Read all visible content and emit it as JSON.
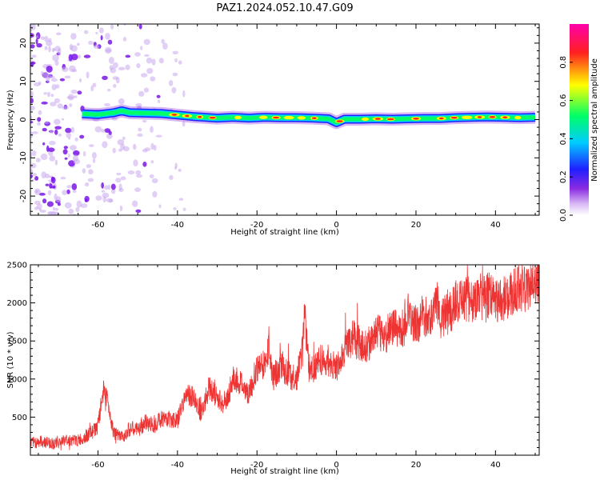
{
  "title": "PAZ1.2024.052.10.47.G09",
  "colors": {
    "snr_line": "#ee3333",
    "noise_purple": "#c9a8ee",
    "noise_violet": "#7a18e8",
    "colormap": [
      "#ffffff",
      "#d8b8f4",
      "#8a2be2",
      "#2020ff",
      "#00ccff",
      "#00ff66",
      "#ffff00",
      "#ff2020",
      "#ff00aa"
    ]
  },
  "chart_data": [
    {
      "type": "heatmap",
      "name": "spectrogram",
      "title": "PAZ1.2024.052.10.47.G09",
      "xlabel": "Height of straight line (km)",
      "ylabel": "Frequency (Hz)",
      "xlim": [
        -77,
        51
      ],
      "ylim": [
        -25,
        25
      ],
      "xticks": [
        -60,
        -40,
        -20,
        0,
        20,
        40
      ],
      "yticks": [
        -20,
        -10,
        0,
        10,
        20
      ],
      "grid": false,
      "colorbar": {
        "label": "Normalized spectral amplitude",
        "range": [
          0.0,
          1.0
        ],
        "ticks": [
          "0.0",
          "0.2",
          "0.4",
          "0.6",
          "0.8"
        ]
      },
      "ridge": {
        "x": [
          -64,
          -60,
          -56,
          -54,
          -52,
          -48,
          -44,
          -40,
          -36,
          -30,
          -26,
          -22,
          -18,
          -14,
          -10,
          -6,
          -2,
          0,
          2,
          6,
          10,
          14,
          18,
          22,
          26,
          30,
          34,
          38,
          42,
          46,
          50
        ],
        "frequency": [
          1.5,
          1.3,
          1.8,
          2.3,
          1.8,
          1.7,
          1.6,
          1.2,
          0.8,
          0.4,
          0.6,
          0.4,
          0.6,
          0.5,
          0.5,
          0.4,
          0.2,
          -0.8,
          0.1,
          0.1,
          0.2,
          0.1,
          0.2,
          0.3,
          0.3,
          0.5,
          0.6,
          0.7,
          0.6,
          0.5,
          0.6
        ]
      },
      "noise_band": {
        "x_range": [
          -77,
          -38
        ],
        "frequency_range": [
          -25,
          25
        ]
      }
    },
    {
      "type": "line",
      "name": "snr",
      "xlabel": "Height of straight line (km)",
      "ylabel": "SNR (10 * v/v)",
      "xlim": [
        -77,
        51
      ],
      "ylim": [
        0,
        2500
      ],
      "xticks": [
        -60,
        -40,
        -20,
        0,
        20,
        40
      ],
      "yticks": [
        500,
        1000,
        1500,
        2000,
        2500
      ],
      "grid": false,
      "x": [
        -77,
        -74,
        -71,
        -68,
        -65,
        -62,
        -60,
        -58.5,
        -57.5,
        -56,
        -54,
        -52,
        -50,
        -48,
        -46,
        -44,
        -42,
        -40,
        -38,
        -36,
        -34,
        -32,
        -30,
        -28,
        -26,
        -24,
        -22,
        -20,
        -18,
        -17,
        -16,
        -14,
        -12,
        -10,
        -8.5,
        -8,
        -7,
        -6,
        -5,
        -4,
        -2,
        0,
        2,
        4,
        6,
        8,
        10,
        12,
        14,
        16,
        18,
        20,
        22,
        24,
        25,
        26,
        28,
        30,
        32,
        34,
        36,
        38,
        40,
        42,
        44,
        46,
        48,
        50,
        51
      ],
      "values": [
        160,
        180,
        150,
        200,
        190,
        280,
        380,
        900,
        700,
        280,
        230,
        350,
        330,
        430,
        400,
        480,
        480,
        450,
        800,
        750,
        550,
        900,
        750,
        650,
        1000,
        950,
        800,
        1150,
        1200,
        1450,
        1000,
        1200,
        1050,
        1000,
        1400,
        1900,
        1150,
        1100,
        1200,
        1250,
        1200,
        1150,
        1350,
        1550,
        1450,
        1450,
        1650,
        1550,
        1700,
        1600,
        1850,
        1700,
        1800,
        1850,
        2150,
        1800,
        1850,
        2000,
        2050,
        2050,
        2000,
        2100,
        2050,
        2050,
        2100,
        2200,
        2200,
        2250,
        2300
      ]
    }
  ]
}
